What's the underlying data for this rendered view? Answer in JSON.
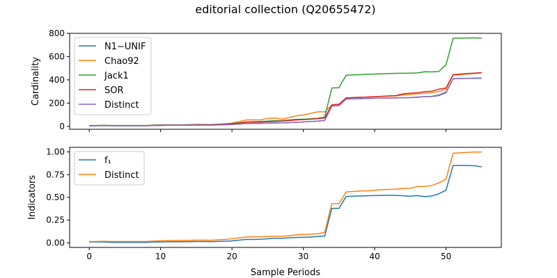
{
  "title": "editorial collection (Q20655472)",
  "chart_data": [
    {
      "type": "line",
      "ylabel": "Cardinality",
      "xlabel": "",
      "xlim": [
        -2.75,
        57.75
      ],
      "ylim": [
        -25,
        800
      ],
      "xticks": [
        0,
        10,
        20,
        30,
        40,
        50
      ],
      "show_xticklabels": false,
      "yticks": [
        0,
        200,
        400,
        600,
        800
      ],
      "yticklabels": [
        "0",
        "200",
        "400",
        "600",
        "800"
      ],
      "legend_loc": "upper-left",
      "x": [
        0,
        1,
        2,
        3,
        4,
        5,
        6,
        7,
        8,
        9,
        10,
        11,
        12,
        13,
        14,
        15,
        16,
        17,
        18,
        19,
        20,
        21,
        22,
        23,
        24,
        25,
        26,
        27,
        28,
        29,
        30,
        31,
        32,
        33,
        34,
        35,
        36,
        37,
        38,
        39,
        40,
        41,
        42,
        43,
        44,
        45,
        46,
        47,
        48,
        49,
        50,
        51,
        52,
        53,
        54,
        55
      ],
      "series": [
        {
          "name": "N1−UNIF",
          "color": "#1f77b4",
          "values": [
            5,
            5,
            6,
            5,
            5,
            5,
            5,
            5,
            5,
            7,
            8,
            9,
            9,
            9,
            10,
            11,
            11,
            10,
            12,
            14,
            16,
            20,
            24,
            25,
            26,
            28,
            29,
            30,
            32,
            35,
            38,
            42,
            45,
            50,
            175,
            178,
            235,
            237,
            238,
            240,
            242,
            243,
            244,
            245,
            246,
            247,
            250,
            255,
            257,
            265,
            290,
            410,
            412,
            413,
            413,
            414
          ]
        },
        {
          "name": "Chao92",
          "color": "#ff7f0e",
          "values": [
            6,
            6,
            7,
            6,
            6,
            6,
            6,
            6,
            6,
            9,
            10,
            12,
            12,
            12,
            13,
            15,
            15,
            14,
            17,
            20,
            28,
            40,
            55,
            56,
            56,
            68,
            72,
            62,
            75,
            90,
            98,
            110,
            125,
            125,
            185,
            190,
            245,
            248,
            250,
            252,
            255,
            258,
            260,
            262,
            270,
            275,
            280,
            285,
            290,
            300,
            320,
            440,
            445,
            450,
            455,
            460
          ]
        },
        {
          "name": "Jack1",
          "color": "#2ca02c",
          "values": [
            7,
            7,
            9,
            7,
            7,
            7,
            7,
            7,
            7,
            11,
            12,
            13,
            13,
            13,
            14,
            16,
            16,
            15,
            18,
            21,
            25,
            30,
            38,
            40,
            42,
            45,
            48,
            50,
            55,
            60,
            62,
            65,
            70,
            80,
            330,
            332,
            440,
            443,
            445,
            448,
            450,
            452,
            455,
            456,
            457,
            458,
            460,
            470,
            468,
            472,
            530,
            758,
            760,
            760,
            762,
            758
          ]
        },
        {
          "name": "SOR",
          "color": "#d62728",
          "values": [
            6,
            6,
            7,
            6,
            6,
            6,
            6,
            6,
            6,
            9,
            10,
            11,
            11,
            11,
            12,
            14,
            14,
            13,
            16,
            19,
            22,
            28,
            35,
            36,
            37,
            40,
            42,
            45,
            50,
            55,
            58,
            62,
            66,
            72,
            185,
            190,
            245,
            248,
            250,
            252,
            255,
            258,
            262,
            265,
            280,
            285,
            290,
            298,
            302,
            320,
            330,
            445,
            450,
            455,
            458,
            462
          ]
        },
        {
          "name": "Distinct",
          "color": "#9467bd",
          "values": [
            5,
            5,
            6,
            5,
            5,
            5,
            5,
            5,
            5,
            7,
            8,
            9,
            9,
            9,
            10,
            11,
            11,
            10,
            12,
            14,
            16,
            20,
            24,
            25,
            26,
            28,
            29,
            30,
            32,
            35,
            38,
            42,
            45,
            50,
            175,
            178,
            235,
            237,
            238,
            240,
            242,
            243,
            244,
            245,
            246,
            248,
            252,
            256,
            258,
            270,
            295,
            408,
            412,
            414,
            415,
            416
          ]
        }
      ]
    },
    {
      "type": "line",
      "ylabel": "Indicators",
      "xlabel": "Sample Periods",
      "xlim": [
        -2.75,
        57.75
      ],
      "ylim": [
        -0.05,
        1.05
      ],
      "xticks": [
        0,
        10,
        20,
        30,
        40,
        50
      ],
      "xticklabels": [
        "0",
        "10",
        "20",
        "30",
        "40",
        "50"
      ],
      "yticks": [
        0,
        0.25,
        0.5,
        0.75,
        1.0
      ],
      "yticklabels": [
        "0.00",
        "0.25",
        "0.50",
        "0.75",
        "1.00"
      ],
      "legend_loc": "upper-left",
      "x": [
        0,
        1,
        2,
        3,
        4,
        5,
        6,
        7,
        8,
        9,
        10,
        11,
        12,
        13,
        14,
        15,
        16,
        17,
        18,
        19,
        20,
        21,
        22,
        23,
        24,
        25,
        26,
        27,
        28,
        29,
        30,
        31,
        32,
        33,
        34,
        35,
        36,
        37,
        38,
        39,
        40,
        41,
        42,
        43,
        44,
        45,
        46,
        47,
        48,
        49,
        50,
        51,
        52,
        53,
        54,
        55
      ],
      "series": [
        {
          "name": "f₁",
          "color": "#1f77b4",
          "values": [
            0.01,
            0.01,
            0.01,
            0.005,
            0.005,
            0.005,
            0.005,
            0.005,
            0.005,
            0.01,
            0.01,
            0.012,
            0.012,
            0.012,
            0.013,
            0.015,
            0.015,
            0.013,
            0.016,
            0.018,
            0.022,
            0.03,
            0.038,
            0.038,
            0.04,
            0.045,
            0.05,
            0.05,
            0.055,
            0.06,
            0.062,
            0.065,
            0.07,
            0.075,
            0.38,
            0.38,
            0.51,
            0.513,
            0.515,
            0.518,
            0.52,
            0.522,
            0.522,
            0.522,
            0.518,
            0.512,
            0.52,
            0.508,
            0.515,
            0.54,
            0.58,
            0.85,
            0.85,
            0.85,
            0.848,
            0.835
          ]
        },
        {
          "name": "Distinct",
          "color": "#ff7f0e",
          "values": [
            0.015,
            0.015,
            0.018,
            0.015,
            0.015,
            0.015,
            0.015,
            0.015,
            0.015,
            0.02,
            0.022,
            0.025,
            0.025,
            0.025,
            0.027,
            0.03,
            0.03,
            0.028,
            0.033,
            0.038,
            0.045,
            0.055,
            0.065,
            0.066,
            0.066,
            0.07,
            0.072,
            0.072,
            0.078,
            0.088,
            0.092,
            0.095,
            0.1,
            0.115,
            0.43,
            0.43,
            0.56,
            0.565,
            0.57,
            0.572,
            0.578,
            0.585,
            0.588,
            0.59,
            0.598,
            0.6,
            0.618,
            0.62,
            0.63,
            0.66,
            0.7,
            0.985,
            0.99,
            0.995,
            0.998,
            0.998
          ]
        }
      ]
    }
  ]
}
